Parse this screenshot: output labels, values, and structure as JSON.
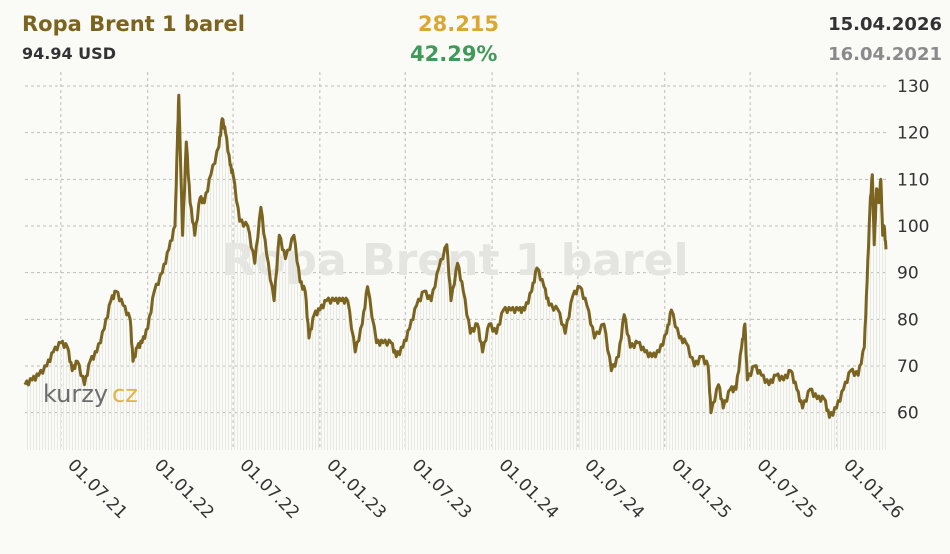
{
  "header": {
    "title": "Ropa Brent 1 barel",
    "price": "94.94 USD",
    "change": "28.215",
    "change_pct": "42.29%",
    "date_end": "15.04.2026",
    "date_start": "16.04.2021"
  },
  "logo": {
    "text_a": "kurzy",
    "text_b": "cz"
  },
  "colors": {
    "line": "#7a6420",
    "change": "#d8a833",
    "positive": "#3f9a5a"
  },
  "chart_data": {
    "type": "line",
    "title": "Ropa Brent 1 barel",
    "xlabel": "",
    "ylabel": "",
    "ylim": [
      52,
      133
    ],
    "y_ticks": [
      60,
      70,
      80,
      90,
      100,
      110,
      120,
      130
    ],
    "x_ticks": [
      "01.07.21",
      "01.01.22",
      "01.07.22",
      "01.01.23",
      "01.07.23",
      "01.01.24",
      "01.07.24",
      "01.01.25",
      "01.07.25",
      "01.01.26"
    ],
    "grid": true,
    "series": [
      {
        "values": [
          [
            "2021-04-16",
            66
          ],
          [
            "2021-05-01",
            67
          ],
          [
            "2021-05-15",
            68
          ],
          [
            "2021-06-01",
            70
          ],
          [
            "2021-06-15",
            73
          ],
          [
            "2021-07-01",
            75
          ],
          [
            "2021-07-15",
            74
          ],
          [
            "2021-07-25",
            69
          ],
          [
            "2021-08-05",
            71
          ],
          [
            "2021-08-20",
            66
          ],
          [
            "2021-09-01",
            71
          ],
          [
            "2021-09-15",
            73
          ],
          [
            "2021-10-01",
            78
          ],
          [
            "2021-10-15",
            84
          ],
          [
            "2021-10-26",
            86
          ],
          [
            "2021-11-10",
            83
          ],
          [
            "2021-11-25",
            80
          ],
          [
            "2021-12-01",
            71
          ],
          [
            "2021-12-10",
            74
          ],
          [
            "2021-12-20",
            75
          ],
          [
            "2022-01-01",
            78
          ],
          [
            "2022-01-15",
            86
          ],
          [
            "2022-02-01",
            90
          ],
          [
            "2022-02-15",
            95
          ],
          [
            "2022-02-28",
            100
          ],
          [
            "2022-03-05",
            118
          ],
          [
            "2022-03-08",
            128
          ],
          [
            "2022-03-16",
            98
          ],
          [
            "2022-03-24",
            118
          ],
          [
            "2022-04-01",
            105
          ],
          [
            "2022-04-11",
            98
          ],
          [
            "2022-04-22",
            106
          ],
          [
            "2022-05-01",
            105
          ],
          [
            "2022-05-15",
            111
          ],
          [
            "2022-06-01",
            117
          ],
          [
            "2022-06-08",
            123
          ],
          [
            "2022-06-15",
            120
          ],
          [
            "2022-06-25",
            113
          ],
          [
            "2022-07-01",
            111
          ],
          [
            "2022-07-15",
            101
          ],
          [
            "2022-08-01",
            100
          ],
          [
            "2022-08-16",
            92
          ],
          [
            "2022-08-29",
            104
          ],
          [
            "2022-09-10",
            94
          ],
          [
            "2022-09-26",
            84
          ],
          [
            "2022-10-07",
            98
          ],
          [
            "2022-10-20",
            93
          ],
          [
            "2022-11-07",
            98
          ],
          [
            "2022-11-20",
            88
          ],
          [
            "2022-12-01",
            86
          ],
          [
            "2022-12-09",
            76
          ],
          [
            "2022-12-20",
            81
          ],
          [
            "2023-01-01",
            82
          ],
          [
            "2023-01-15",
            84
          ],
          [
            "2023-02-01",
            84
          ],
          [
            "2023-02-15",
            84
          ],
          [
            "2023-03-01",
            84
          ],
          [
            "2023-03-17",
            73
          ],
          [
            "2023-04-01",
            79
          ],
          [
            "2023-04-12",
            87
          ],
          [
            "2023-05-01",
            75
          ],
          [
            "2023-05-15",
            75
          ],
          [
            "2023-06-01",
            75
          ],
          [
            "2023-06-12",
            72
          ],
          [
            "2023-06-26",
            74
          ],
          [
            "2023-07-10",
            78
          ],
          [
            "2023-07-25",
            83
          ],
          [
            "2023-08-10",
            86
          ],
          [
            "2023-08-25",
            84
          ],
          [
            "2023-09-10",
            91
          ],
          [
            "2023-09-27",
            96
          ],
          [
            "2023-10-06",
            84
          ],
          [
            "2023-10-20",
            92
          ],
          [
            "2023-11-01",
            86
          ],
          [
            "2023-11-16",
            77
          ],
          [
            "2023-12-01",
            79
          ],
          [
            "2023-12-12",
            73
          ],
          [
            "2023-12-26",
            79
          ],
          [
            "2024-01-10",
            77
          ],
          [
            "2024-01-25",
            82
          ],
          [
            "2024-02-10",
            82
          ],
          [
            "2024-02-26",
            82
          ],
          [
            "2024-03-10",
            82
          ],
          [
            "2024-03-25",
            86
          ],
          [
            "2024-04-05",
            91
          ],
          [
            "2024-04-20",
            87
          ],
          [
            "2024-05-01",
            83
          ],
          [
            "2024-05-20",
            82
          ],
          [
            "2024-06-04",
            77
          ],
          [
            "2024-06-20",
            85
          ],
          [
            "2024-07-05",
            87
          ],
          [
            "2024-07-20",
            83
          ],
          [
            "2024-08-05",
            76
          ],
          [
            "2024-08-25",
            79
          ],
          [
            "2024-09-10",
            69
          ],
          [
            "2024-09-25",
            72
          ],
          [
            "2024-10-07",
            81
          ],
          [
            "2024-10-20",
            74
          ],
          [
            "2024-11-05",
            75
          ],
          [
            "2024-11-20",
            73
          ],
          [
            "2024-12-05",
            72
          ],
          [
            "2024-12-20",
            73
          ],
          [
            "2025-01-05",
            77
          ],
          [
            "2025-01-15",
            82
          ],
          [
            "2025-02-01",
            76
          ],
          [
            "2025-02-15",
            75
          ],
          [
            "2025-03-05",
            70
          ],
          [
            "2025-03-20",
            72
          ],
          [
            "2025-04-03",
            70
          ],
          [
            "2025-04-09",
            60
          ],
          [
            "2025-04-25",
            66
          ],
          [
            "2025-05-05",
            61
          ],
          [
            "2025-05-20",
            65
          ],
          [
            "2025-06-01",
            65
          ],
          [
            "2025-06-13",
            74
          ],
          [
            "2025-06-20",
            79
          ],
          [
            "2025-06-25",
            67
          ],
          [
            "2025-07-10",
            70
          ],
          [
            "2025-07-25",
            68
          ],
          [
            "2025-08-10",
            66
          ],
          [
            "2025-08-25",
            68
          ],
          [
            "2025-09-10",
            67
          ],
          [
            "2025-09-25",
            69
          ],
          [
            "2025-10-08",
            65
          ],
          [
            "2025-10-20",
            61
          ],
          [
            "2025-11-05",
            65
          ],
          [
            "2025-11-20",
            63
          ],
          [
            "2025-12-05",
            63
          ],
          [
            "2025-12-16",
            59
          ],
          [
            "2025-12-31",
            61
          ],
          [
            "2026-01-15",
            65
          ],
          [
            "2026-01-30",
            69
          ],
          [
            "2026-02-15",
            68
          ],
          [
            "2026-02-28",
            74
          ],
          [
            "2026-03-06",
            88
          ],
          [
            "2026-03-12",
            104
          ],
          [
            "2026-03-17",
            111
          ],
          [
            "2026-03-21",
            96
          ],
          [
            "2026-03-26",
            108
          ],
          [
            "2026-03-31",
            105
          ],
          [
            "2026-04-04",
            110
          ],
          [
            "2026-04-08",
            98
          ],
          [
            "2026-04-11",
            100
          ],
          [
            "2026-04-15",
            95
          ]
        ]
      }
    ]
  }
}
